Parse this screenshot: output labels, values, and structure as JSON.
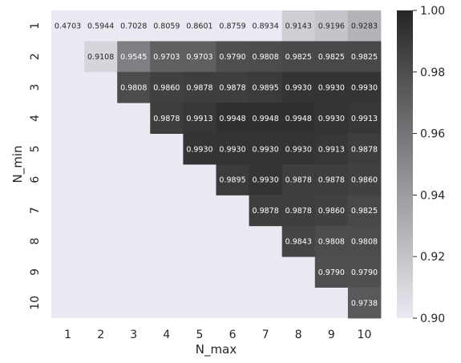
{
  "chart_data": {
    "type": "heatmap",
    "xlabel": "N_max",
    "ylabel": "N_min",
    "x_categories": [
      "1",
      "2",
      "3",
      "4",
      "5",
      "6",
      "7",
      "8",
      "9",
      "10"
    ],
    "y_categories": [
      "1",
      "2",
      "3",
      "4",
      "5",
      "6",
      "7",
      "8",
      "9",
      "10"
    ],
    "values": [
      [
        0.4703,
        0.5944,
        0.7028,
        0.8059,
        0.8601,
        0.8759,
        0.8934,
        0.9143,
        0.9196,
        0.9283
      ],
      [
        null,
        0.9108,
        0.9545,
        0.9703,
        0.9703,
        0.979,
        0.9808,
        0.9825,
        0.9825,
        0.9825
      ],
      [
        null,
        null,
        0.9808,
        0.986,
        0.9878,
        0.9878,
        0.9895,
        0.993,
        0.993,
        0.993
      ],
      [
        null,
        null,
        null,
        0.9878,
        0.9913,
        0.9948,
        0.9948,
        0.9948,
        0.993,
        0.9913
      ],
      [
        null,
        null,
        null,
        null,
        0.993,
        0.993,
        0.993,
        0.993,
        0.9913,
        0.9878
      ],
      [
        null,
        null,
        null,
        null,
        null,
        0.9895,
        0.993,
        0.9878,
        0.9878,
        0.986
      ],
      [
        null,
        null,
        null,
        null,
        null,
        null,
        0.9878,
        0.9878,
        0.986,
        0.9825
      ],
      [
        null,
        null,
        null,
        null,
        null,
        null,
        null,
        0.9843,
        0.9808,
        0.9808
      ],
      [
        null,
        null,
        null,
        null,
        null,
        null,
        null,
        null,
        0.979,
        0.979
      ],
      [
        null,
        null,
        null,
        null,
        null,
        null,
        null,
        null,
        null,
        0.9738
      ]
    ],
    "cell_labels": [
      [
        "0.4703",
        "0.5944",
        "0.7028",
        "0.8059",
        "0.8601",
        "0.8759",
        "0.8934",
        "0.9143",
        "0.9196",
        "0.9283"
      ],
      [
        null,
        "0.9108",
        "0.9545",
        "0.9703",
        "0.9703",
        "0.9790",
        "0.9808",
        "0.9825",
        "0.9825",
        "0.9825"
      ],
      [
        null,
        null,
        "0.9808",
        "0.9860",
        "0.9878",
        "0.9878",
        "0.9895",
        "0.9930",
        "0.9930",
        "0.9930"
      ],
      [
        null,
        null,
        null,
        "0.9878",
        "0.9913",
        "0.9948",
        "0.9948",
        "0.9948",
        "0.9930",
        "0.9913"
      ],
      [
        null,
        null,
        null,
        null,
        "0.9930",
        "0.9930",
        "0.9930",
        "0.9930",
        "0.9913",
        "0.9878"
      ],
      [
        null,
        null,
        null,
        null,
        null,
        "0.9895",
        "0.9930",
        "0.9878",
        "0.9878",
        "0.9860"
      ],
      [
        null,
        null,
        null,
        null,
        null,
        null,
        "0.9878",
        "0.9878",
        "0.9860",
        "0.9825"
      ],
      [
        null,
        null,
        null,
        null,
        null,
        null,
        null,
        "0.9843",
        "0.9808",
        "0.9808"
      ],
      [
        null,
        null,
        null,
        null,
        null,
        null,
        null,
        null,
        "0.9790",
        "0.9790"
      ],
      [
        null,
        null,
        null,
        null,
        null,
        null,
        null,
        null,
        null,
        "0.9738"
      ]
    ],
    "colorbar": {
      "vmin": 0.9,
      "vmax": 1.0,
      "ticks": [
        0.9,
        0.92,
        0.94,
        0.96,
        0.98,
        1.0
      ],
      "tick_labels": [
        "0.90",
        "0.92",
        "0.94",
        "0.96",
        "0.98",
        "1.00"
      ]
    },
    "colors": {
      "low": "#eaeaf2",
      "high": "#262626",
      "masked": "#eaeaf2",
      "text_dark": "#262626",
      "text_light": "#ffffff"
    },
    "grid": false,
    "legend": "colorbar-right"
  }
}
